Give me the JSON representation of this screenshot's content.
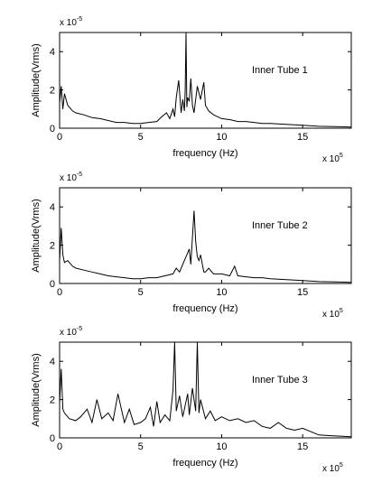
{
  "figure": {
    "background": "#ffffff",
    "line_color": "#000000"
  },
  "chart_data": [
    {
      "type": "line",
      "annotation": "Inner Tube 1",
      "xlabel": "frequency (Hz)",
      "ylabel": "Amplitude(Vrms)",
      "x_exponent": {
        "base": "x 10",
        "power": "5"
      },
      "y_exponent": {
        "base": "x 10",
        "power": "-5"
      },
      "xlim": [
        0,
        18
      ],
      "ylim": [
        0,
        5
      ],
      "xticks": [
        0,
        5,
        10,
        15
      ],
      "xtick_labels": [
        "0",
        "5",
        "10",
        "15"
      ],
      "yticks": [
        0,
        2,
        4
      ],
      "ytick_labels": [
        "0",
        "2",
        "4"
      ],
      "grid": false,
      "x": [
        0.0,
        0.1,
        0.2,
        0.3,
        0.5,
        0.8,
        1.0,
        1.5,
        2.0,
        2.5,
        3.0,
        3.5,
        4.0,
        4.5,
        5.0,
        5.5,
        6.0,
        6.3,
        6.6,
        6.8,
        7.0,
        7.1,
        7.2,
        7.35,
        7.5,
        7.6,
        7.7,
        7.75,
        7.8,
        7.85,
        7.9,
        8.0,
        8.1,
        8.2,
        8.3,
        8.5,
        8.7,
        8.9,
        9.0,
        9.2,
        9.5,
        10.0,
        10.5,
        11.0,
        11.5,
        12.0,
        12.5,
        13.0,
        14.0,
        15.0,
        16.0,
        17.0,
        18.0
      ],
      "y": [
        1.3,
        2.2,
        1.0,
        1.8,
        1.2,
        0.9,
        0.8,
        0.7,
        0.55,
        0.5,
        0.4,
        0.3,
        0.3,
        0.25,
        0.25,
        0.3,
        0.35,
        0.6,
        0.8,
        0.5,
        1.0,
        0.6,
        1.6,
        2.5,
        0.8,
        1.5,
        0.9,
        2.0,
        5.0,
        1.1,
        1.6,
        1.4,
        2.6,
        1.2,
        0.8,
        2.2,
        1.5,
        2.4,
        1.2,
        0.9,
        0.7,
        0.5,
        0.45,
        0.35,
        0.35,
        0.3,
        0.25,
        0.25,
        0.2,
        0.15,
        0.1,
        0.08,
        0.06
      ]
    },
    {
      "type": "line",
      "annotation": "Inner Tube 2",
      "xlabel": "frequency (Hz)",
      "ylabel": "Amplitude(Vrms)",
      "x_exponent": {
        "base": "x 10",
        "power": "5"
      },
      "y_exponent": {
        "base": "x 10",
        "power": "-5"
      },
      "xlim": [
        0,
        18
      ],
      "ylim": [
        0,
        5
      ],
      "xticks": [
        0,
        5,
        10,
        15
      ],
      "xtick_labels": [
        "0",
        "5",
        "10",
        "15"
      ],
      "yticks": [
        0,
        2,
        4
      ],
      "ytick_labels": [
        "0",
        "2",
        "4"
      ],
      "grid": false,
      "x": [
        0.0,
        0.1,
        0.2,
        0.3,
        0.5,
        0.8,
        1.0,
        1.5,
        2.0,
        2.5,
        3.0,
        3.5,
        4.0,
        4.5,
        5.0,
        5.5,
        6.0,
        6.5,
        7.0,
        7.2,
        7.4,
        7.6,
        7.8,
        8.0,
        8.1,
        8.2,
        8.3,
        8.4,
        8.5,
        8.6,
        8.7,
        8.9,
        9.0,
        9.2,
        9.5,
        10.0,
        10.5,
        10.8,
        11.0,
        11.5,
        12.0,
        12.5,
        13.0,
        14.0,
        15.0,
        16.0,
        17.0,
        18.0
      ],
      "y": [
        1.2,
        2.9,
        1.5,
        1.1,
        1.2,
        0.9,
        0.8,
        0.7,
        0.6,
        0.5,
        0.4,
        0.35,
        0.3,
        0.25,
        0.25,
        0.3,
        0.3,
        0.4,
        0.5,
        0.8,
        0.6,
        1.0,
        1.4,
        1.8,
        1.0,
        2.4,
        3.8,
        2.2,
        1.4,
        1.2,
        1.5,
        0.6,
        0.6,
        0.8,
        0.5,
        0.5,
        0.4,
        0.9,
        0.4,
        0.35,
        0.3,
        0.3,
        0.25,
        0.2,
        0.15,
        0.1,
        0.08,
        0.06
      ]
    },
    {
      "type": "line",
      "annotation": "Inner Tube 3",
      "xlabel": "frequency (Hz)",
      "ylabel": "Amplitude(Vrms)",
      "x_exponent": {
        "base": "x 10",
        "power": "5"
      },
      "y_exponent": {
        "base": "x 10",
        "power": "-5"
      },
      "xlim": [
        0,
        18
      ],
      "ylim": [
        0,
        5
      ],
      "xticks": [
        0,
        5,
        10,
        15
      ],
      "xtick_labels": [
        "0",
        "5",
        "10",
        "15"
      ],
      "yticks": [
        0,
        2,
        4
      ],
      "ytick_labels": [
        "0",
        "2",
        "4"
      ],
      "grid": false,
      "x": [
        0.0,
        0.1,
        0.2,
        0.3,
        0.6,
        1.0,
        1.3,
        1.7,
        2.0,
        2.3,
        2.6,
        3.0,
        3.3,
        3.6,
        4.0,
        4.3,
        4.6,
        5.0,
        5.3,
        5.6,
        5.8,
        6.0,
        6.2,
        6.5,
        6.8,
        7.0,
        7.1,
        7.2,
        7.4,
        7.6,
        7.9,
        8.0,
        8.2,
        8.4,
        8.5,
        8.6,
        8.7,
        9.0,
        9.3,
        9.6,
        10.0,
        10.5,
        11.0,
        11.5,
        12.0,
        12.5,
        13.0,
        13.5,
        14.0,
        14.5,
        15.0,
        16.0,
        17.0,
        18.0
      ],
      "y": [
        1.8,
        3.6,
        1.5,
        1.3,
        1.0,
        0.9,
        1.1,
        1.5,
        0.8,
        2.0,
        1.0,
        1.3,
        0.9,
        2.3,
        0.8,
        1.5,
        0.7,
        0.8,
        1.0,
        1.6,
        0.6,
        1.9,
        0.8,
        1.2,
        0.9,
        2.5,
        5.0,
        1.4,
        2.2,
        1.1,
        2.3,
        1.2,
        2.6,
        1.4,
        5.0,
        1.3,
        2.0,
        1.0,
        1.4,
        0.9,
        1.1,
        0.9,
        1.0,
        0.8,
        0.9,
        0.6,
        0.5,
        0.8,
        0.5,
        0.4,
        0.5,
        0.15,
        0.1,
        0.06
      ]
    }
  ]
}
